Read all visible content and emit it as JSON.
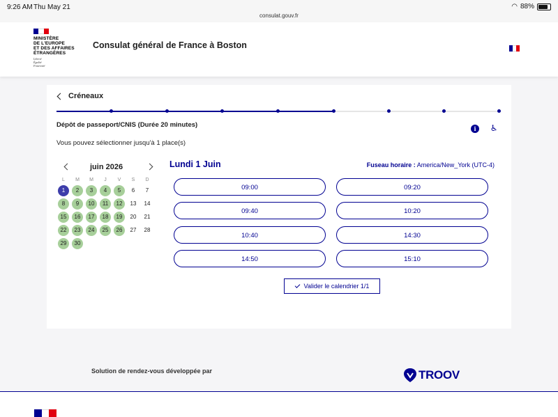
{
  "status_bar": {
    "time": "9:26 AM",
    "date": "Thu May 21",
    "url": "consulat.gouv.fr",
    "battery": "88%"
  },
  "header": {
    "gov_lines": [
      "MINISTÈRE",
      "DE L'EUROPE",
      "ET DES AFFAIRES",
      "ÉTRANGÈRES"
    ],
    "devise": [
      "Liberté",
      "Égalité",
      "Fraternité"
    ],
    "site_title": "Consulat général de France à Boston"
  },
  "card": {
    "back_label": "Créneaux",
    "progress": {
      "steps": 9,
      "current_step": 6
    },
    "service_title": "Dépôt de passeport/CNIS (Durée 20 minutes)",
    "places_text": "Vous pouvez sélectionner jusqu'à 1 place(s)",
    "calendar": {
      "month": "juin 2026",
      "weekdays": [
        "L",
        "M",
        "M",
        "J",
        "V",
        "S",
        "D"
      ],
      "weeks": [
        [
          {
            "d": "1",
            "s": "sel"
          },
          {
            "d": "2",
            "s": "avail"
          },
          {
            "d": "3",
            "s": "avail"
          },
          {
            "d": "4",
            "s": "avail"
          },
          {
            "d": "5",
            "s": "avail"
          },
          {
            "d": "6",
            "s": ""
          },
          {
            "d": "7",
            "s": ""
          }
        ],
        [
          {
            "d": "8",
            "s": "avail"
          },
          {
            "d": "9",
            "s": "avail"
          },
          {
            "d": "10",
            "s": "avail"
          },
          {
            "d": "11",
            "s": "avail"
          },
          {
            "d": "12",
            "s": "avail"
          },
          {
            "d": "13",
            "s": ""
          },
          {
            "d": "14",
            "s": ""
          }
        ],
        [
          {
            "d": "15",
            "s": "avail"
          },
          {
            "d": "16",
            "s": "avail"
          },
          {
            "d": "17",
            "s": "avail"
          },
          {
            "d": "18",
            "s": "avail"
          },
          {
            "d": "19",
            "s": "avail"
          },
          {
            "d": "20",
            "s": ""
          },
          {
            "d": "21",
            "s": ""
          }
        ],
        [
          {
            "d": "22",
            "s": "avail"
          },
          {
            "d": "23",
            "s": "avail"
          },
          {
            "d": "24",
            "s": "avail"
          },
          {
            "d": "25",
            "s": "avail"
          },
          {
            "d": "26",
            "s": "avail"
          },
          {
            "d": "27",
            "s": ""
          },
          {
            "d": "28",
            "s": ""
          }
        ],
        [
          {
            "d": "29",
            "s": "avail"
          },
          {
            "d": "30",
            "s": "avail"
          }
        ]
      ]
    },
    "selected_date": "Lundi 1 Juin",
    "timezone_label": "Fuseau horaire :",
    "timezone_value": "America/New_York (UTC-4)",
    "slots": [
      "09:00",
      "09:20",
      "09:40",
      "10:20",
      "10:40",
      "14:30",
      "14:50",
      "15:10"
    ],
    "validate_label": "Valider le calendrier 1/1"
  },
  "footer": {
    "text": "Solution de rendez-vous développée par",
    "brand": "TROOV"
  },
  "colors": {
    "primary": "#000091",
    "available": "#a7cf9a",
    "selected": "#3d3daa",
    "flag_blue": "#000091",
    "flag_red": "#e1000f"
  }
}
